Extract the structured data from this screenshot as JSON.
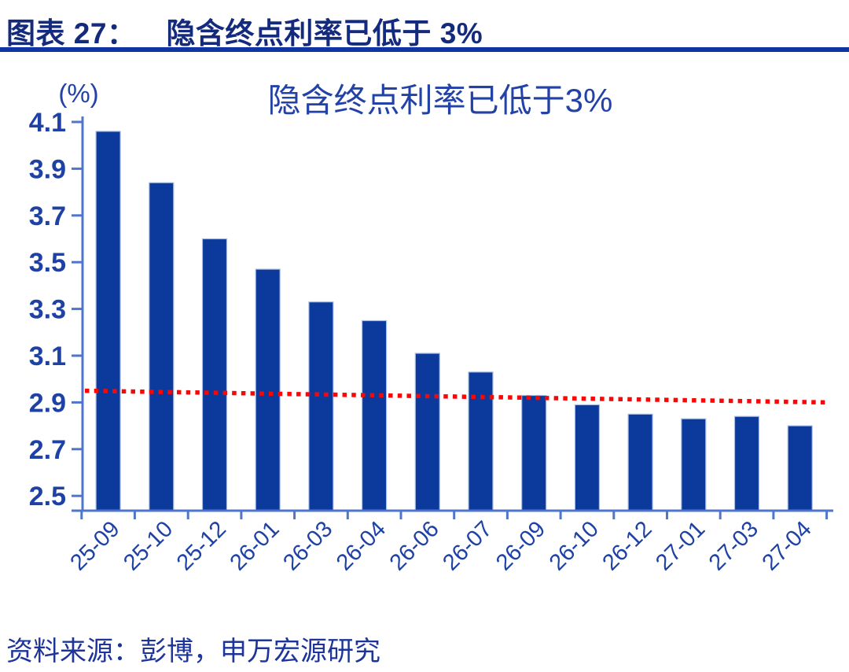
{
  "figure": {
    "label": "图表 27：",
    "title": "隐含终点利率已低于 3%"
  },
  "chart_data": {
    "type": "bar",
    "title": "隐含终点利率已低于3%",
    "unit_label": "(%)",
    "categories": [
      "25-09",
      "25-10",
      "25-12",
      "26-01",
      "26-03",
      "26-04",
      "26-06",
      "26-07",
      "26-09",
      "26-10",
      "26-12",
      "27-01",
      "27-03",
      "27-04"
    ],
    "values": [
      4.06,
      3.84,
      3.6,
      3.47,
      3.33,
      3.25,
      3.11,
      3.03,
      2.93,
      2.89,
      2.85,
      2.83,
      2.84,
      2.8
    ],
    "yticks": [
      4.1,
      3.9,
      3.7,
      3.5,
      3.3,
      3.1,
      2.9,
      2.7,
      2.5
    ],
    "ylim": [
      2.43,
      4.1
    ],
    "grid": false,
    "legend": false,
    "bar_color": "#0b3a9c",
    "bar_border_color": "#a9bee4",
    "axis_color": "#4f76cd",
    "label_color": "#1e41a5",
    "title_color": "#2342a7",
    "reference_line": {
      "color": "#f90606",
      "style": "dotted",
      "start_value": 2.95,
      "end_value": 2.9
    }
  },
  "header": {
    "text_color": "#132a7d",
    "rule_color": "#1134a3"
  },
  "source": {
    "text": "资料来源：彭博，申万宏源研究",
    "text_color": "#1d3499"
  }
}
